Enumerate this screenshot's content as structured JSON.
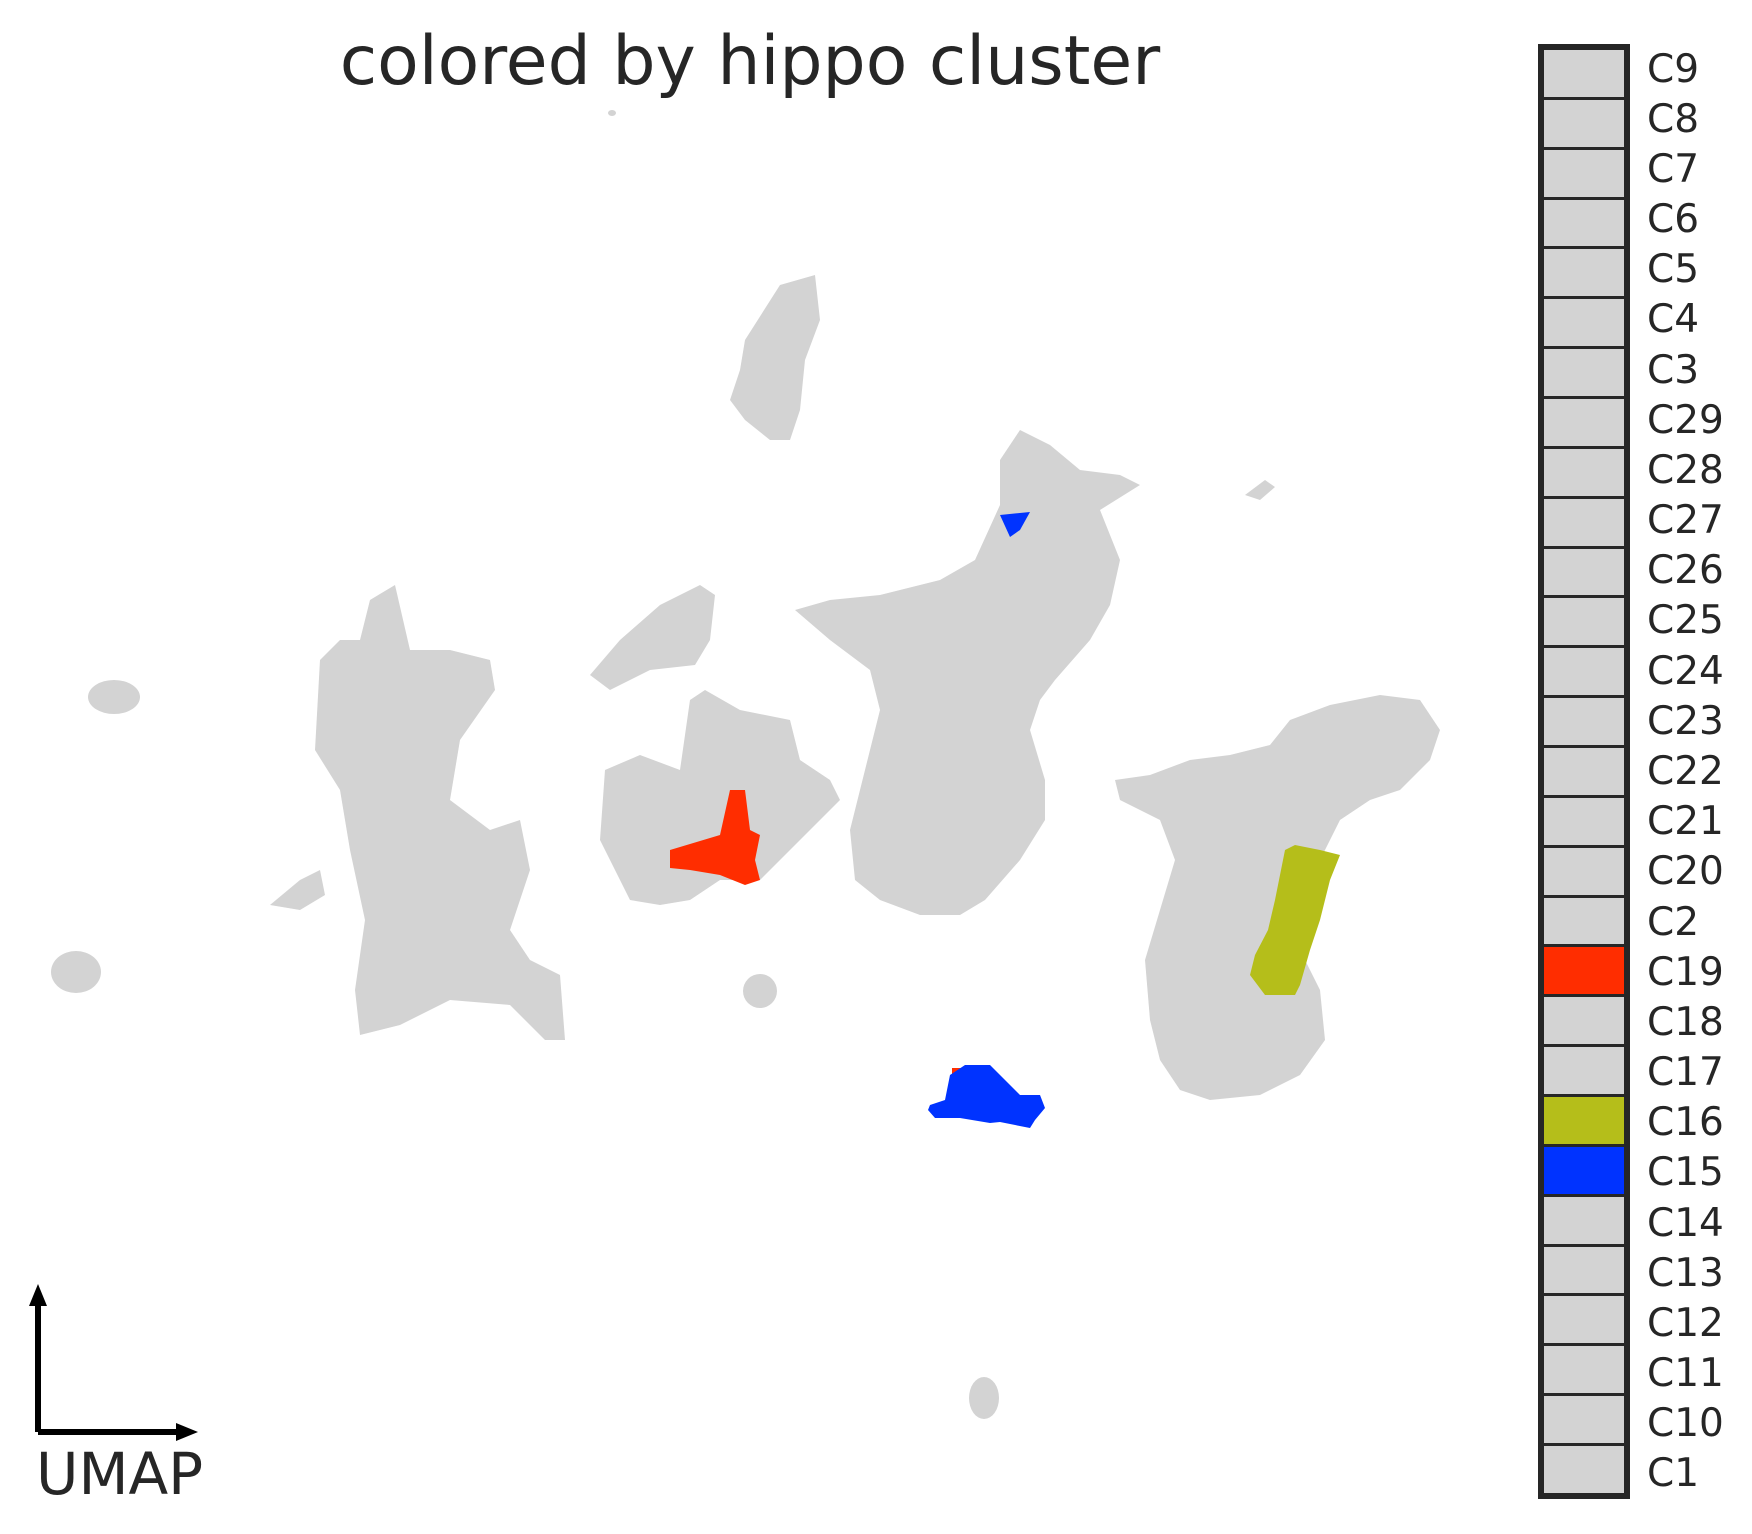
{
  "chart_data": {
    "type": "scatter",
    "title": "colored by hippo cluster",
    "axis_indicator_label": "UMAP",
    "grid": false,
    "axes_visible": false,
    "legend_placement": "right",
    "background_color": "#d3d3d3",
    "legend": [
      {
        "label": "C9",
        "color": "#d3d3d3"
      },
      {
        "label": "C8",
        "color": "#d3d3d3"
      },
      {
        "label": "C7",
        "color": "#d3d3d3"
      },
      {
        "label": "C6",
        "color": "#d3d3d3"
      },
      {
        "label": "C5",
        "color": "#d3d3d3"
      },
      {
        "label": "C4",
        "color": "#d3d3d3"
      },
      {
        "label": "C3",
        "color": "#d3d3d3"
      },
      {
        "label": "C29",
        "color": "#d3d3d3"
      },
      {
        "label": "C28",
        "color": "#d3d3d3"
      },
      {
        "label": "C27",
        "color": "#d3d3d3"
      },
      {
        "label": "C26",
        "color": "#d3d3d3"
      },
      {
        "label": "C25",
        "color": "#d3d3d3"
      },
      {
        "label": "C24",
        "color": "#d3d3d3"
      },
      {
        "label": "C23",
        "color": "#d3d3d3"
      },
      {
        "label": "C22",
        "color": "#d3d3d3"
      },
      {
        "label": "C21",
        "color": "#d3d3d3"
      },
      {
        "label": "C20",
        "color": "#d3d3d3"
      },
      {
        "label": "C2",
        "color": "#d3d3d3"
      },
      {
        "label": "C19",
        "color": "#ff2d00"
      },
      {
        "label": "C18",
        "color": "#d3d3d3"
      },
      {
        "label": "C17",
        "color": "#d3d3d3"
      },
      {
        "label": "C16",
        "color": "#b5be1a"
      },
      {
        "label": "C15",
        "color": "#0033ff"
      },
      {
        "label": "C14",
        "color": "#d3d3d3"
      },
      {
        "label": "C13",
        "color": "#d3d3d3"
      },
      {
        "label": "C12",
        "color": "#d3d3d3"
      },
      {
        "label": "C11",
        "color": "#d3d3d3"
      },
      {
        "label": "C10",
        "color": "#d3d3d3"
      },
      {
        "label": "C1",
        "color": "#d3d3d3"
      }
    ]
  }
}
